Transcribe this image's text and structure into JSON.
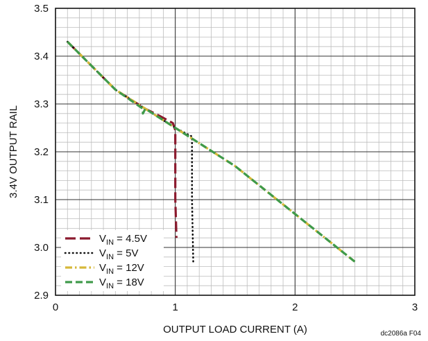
{
  "chart_data": {
    "type": "line",
    "title": "",
    "xlabel": "OUTPUT LOAD CURRENT (A)",
    "ylabel": "3.4V OUTPUT RAIL",
    "xlim": [
      0,
      3
    ],
    "ylim": [
      2.9,
      3.5
    ],
    "x_major_ticks": [
      0,
      1,
      2,
      3
    ],
    "y_major_ticks": [
      2.9,
      3.0,
      3.1,
      3.2,
      3.3,
      3.4,
      3.5
    ],
    "x_tick_labels": [
      "0",
      "1",
      "2",
      "3"
    ],
    "y_tick_labels": [
      "2.9",
      "3.0",
      "3.1",
      "3.2",
      "3.3",
      "3.4",
      "3.5"
    ],
    "grid": true,
    "minor_grid": true,
    "legend_position": "bottom-left",
    "figure_code": "dc2086a F04",
    "series": [
      {
        "label_main": "V",
        "label_sub": "IN",
        "label_rest": " = 4.5V",
        "color": "#8b1a2e",
        "style": "long-dash",
        "points": [
          [
            0.1,
            3.43
          ],
          [
            0.5,
            3.33
          ],
          [
            0.75,
            3.29
          ],
          [
            0.87,
            3.275
          ],
          [
            0.98,
            3.26
          ],
          [
            1.0,
            3.245
          ],
          [
            1.0,
            3.1
          ],
          [
            1.01,
            3.02
          ]
        ]
      },
      {
        "label_main": "V",
        "label_sub": "IN",
        "label_rest": " = 5V",
        "color": "#111111",
        "style": "dotted",
        "points": [
          [
            0.1,
            3.43
          ],
          [
            0.5,
            3.33
          ],
          [
            0.75,
            3.29
          ],
          [
            1.0,
            3.25
          ],
          [
            1.14,
            3.232
          ],
          [
            1.14,
            3.1
          ],
          [
            1.15,
            2.97
          ]
        ]
      },
      {
        "label_main": "V",
        "label_sub": "IN",
        "label_rest": " = 12V",
        "color": "#d6b83a",
        "style": "dash-dot",
        "points": [
          [
            0.1,
            3.43
          ],
          [
            0.5,
            3.33
          ],
          [
            0.75,
            3.29
          ],
          [
            1.0,
            3.25
          ],
          [
            1.5,
            3.17
          ],
          [
            2.0,
            3.07
          ],
          [
            2.5,
            2.97
          ]
        ]
      },
      {
        "label_main": "V",
        "label_sub": "IN",
        "label_rest": " = 18V",
        "color": "#3f9a4a",
        "style": "dash",
        "points": [
          [
            0.1,
            3.43
          ],
          [
            0.5,
            3.33
          ],
          [
            0.73,
            3.29
          ],
          [
            0.73,
            3.28
          ],
          [
            0.75,
            3.29
          ],
          [
            1.0,
            3.25
          ],
          [
            1.5,
            3.17
          ],
          [
            2.0,
            3.07
          ],
          [
            2.5,
            2.97
          ]
        ]
      }
    ]
  }
}
